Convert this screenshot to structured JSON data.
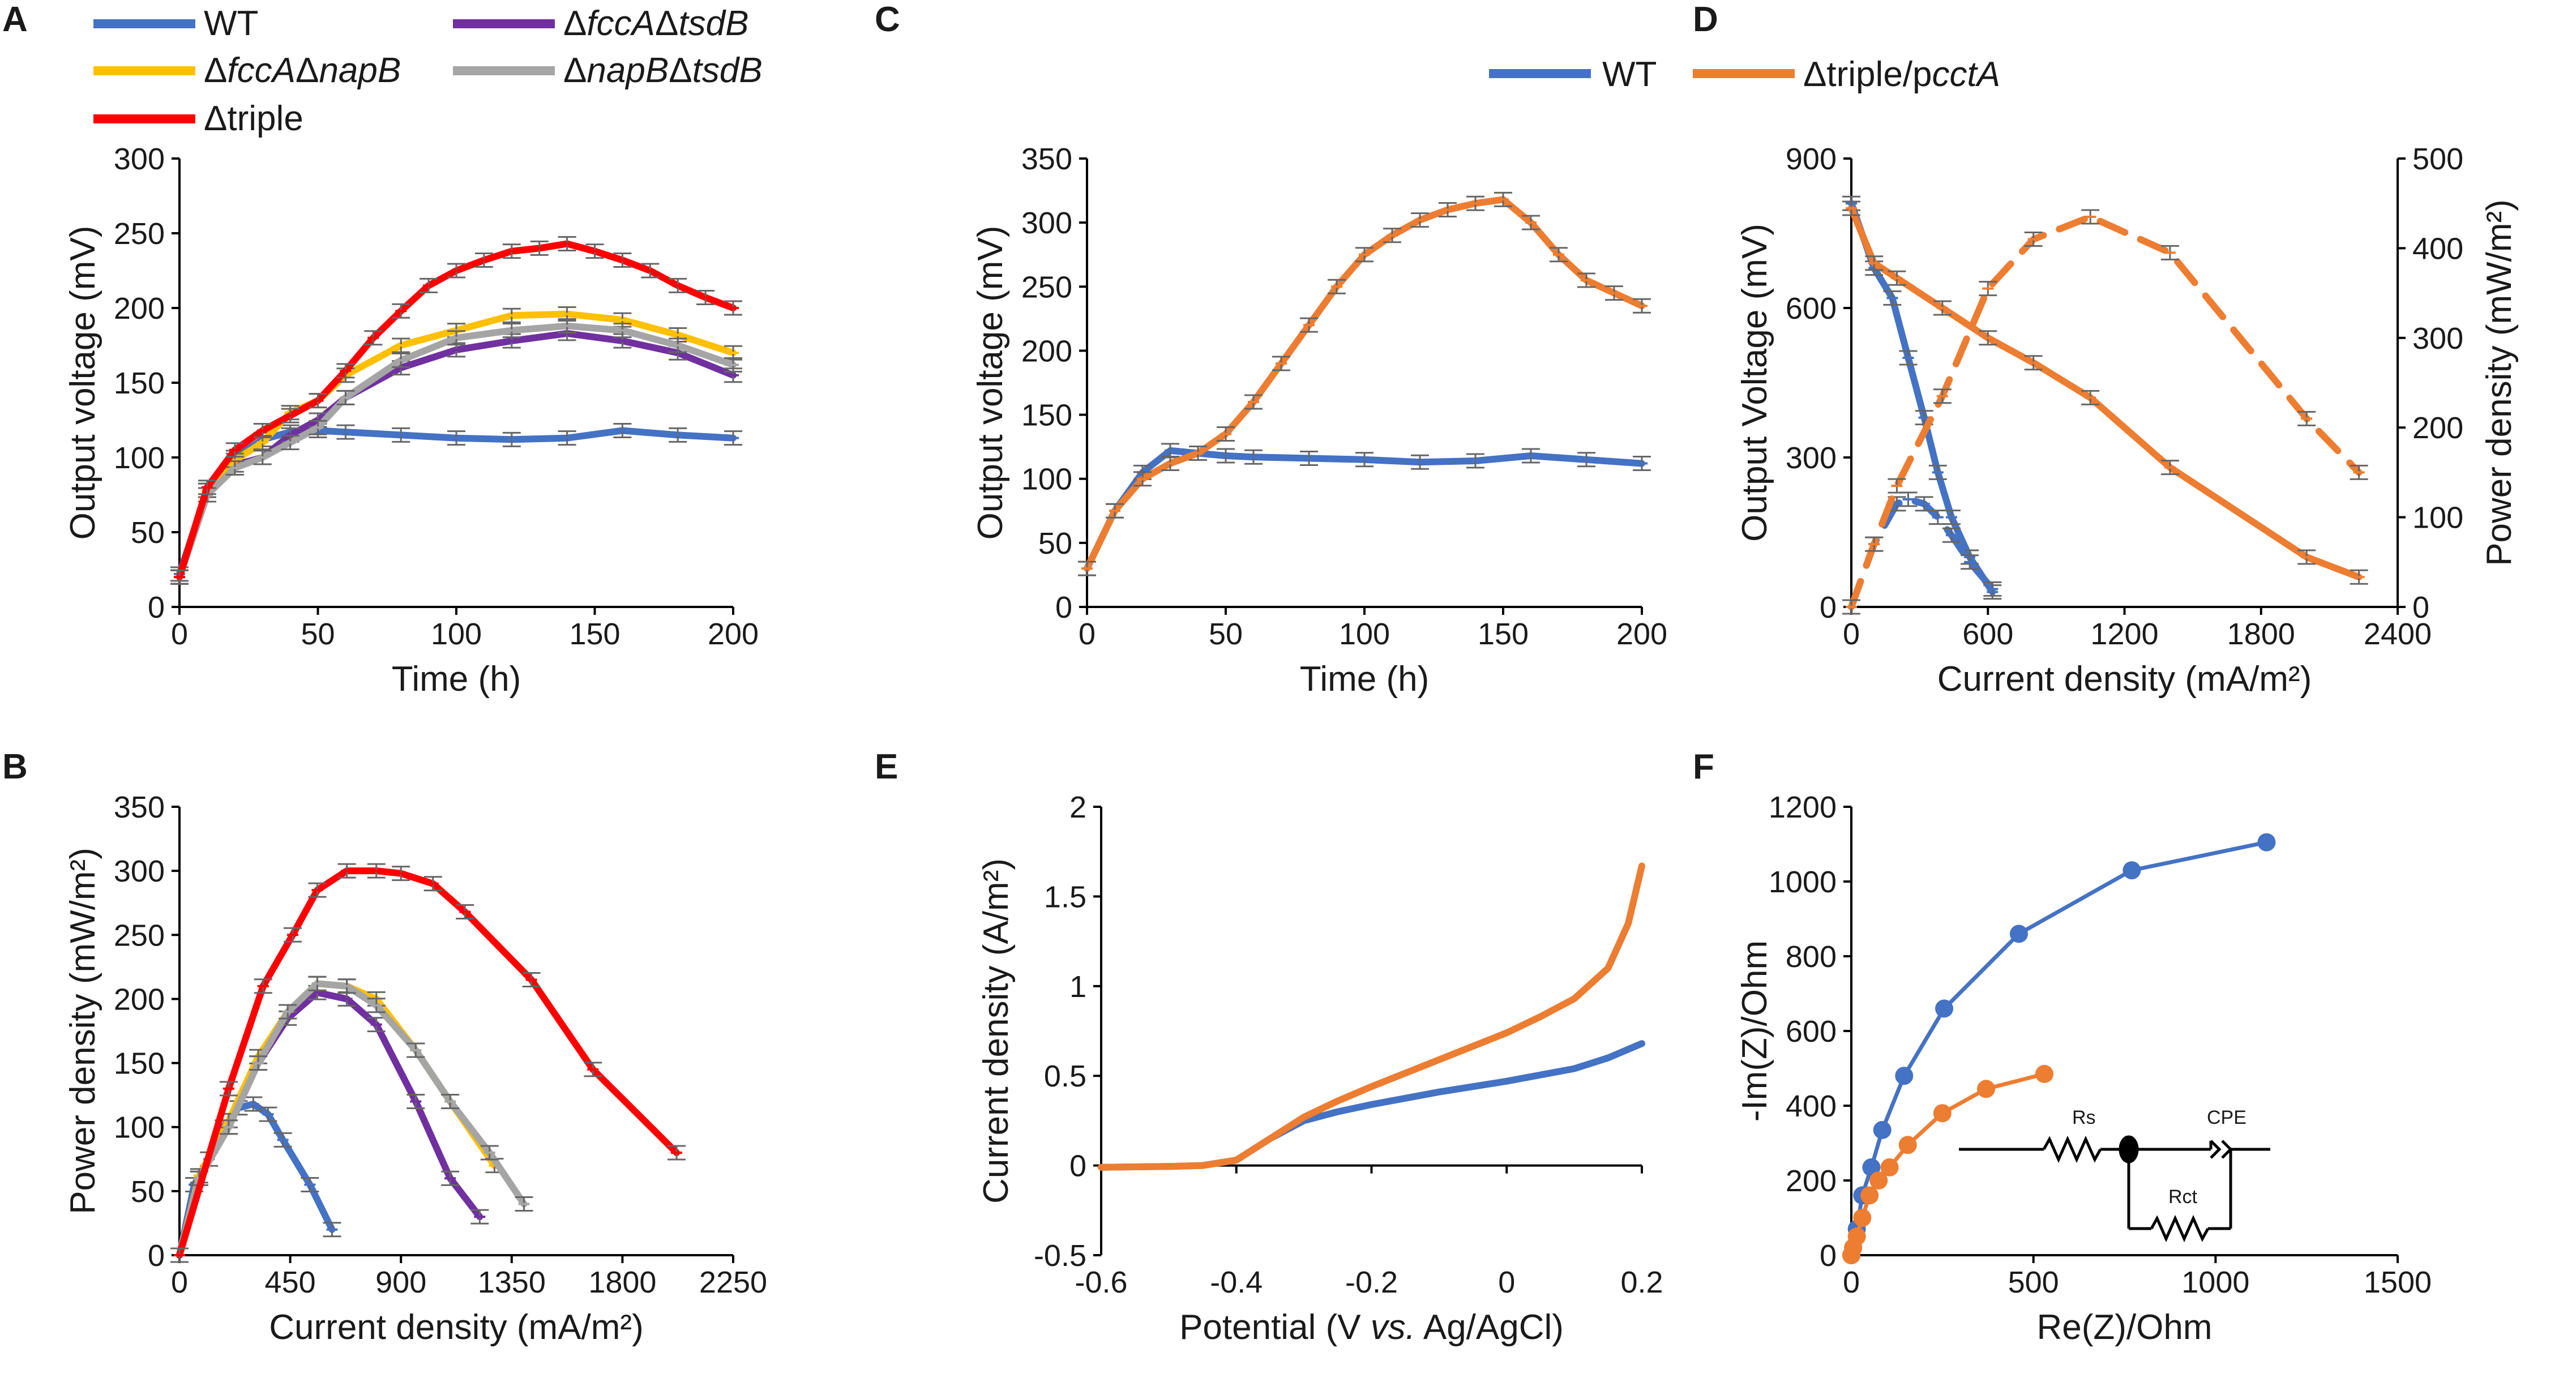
{
  "colors": {
    "wt": "#4472c4",
    "triple": "#ed7d31",
    "red": "#ff0000",
    "purple": "#7030a0",
    "yellow": "#ffc000",
    "gray": "#a5a5a5",
    "axis": "#000000"
  },
  "chart_data": [
    {
      "panel": "A",
      "type": "line",
      "xlabel": "Time (h)",
      "ylabel": "Output voltage (mV)",
      "xlim": [
        0,
        200
      ],
      "ylim": [
        0,
        300
      ],
      "xticks": [
        0,
        50,
        100,
        150,
        200
      ],
      "yticks": [
        0,
        50,
        100,
        150,
        200,
        250,
        300
      ],
      "error_bars": true,
      "legend": [
        {
          "prefix": "",
          "italic": "",
          "mid": "",
          "italic2": "",
          "suffix": "WT",
          "color": "#4472c4"
        },
        {
          "prefix": "Δ",
          "italic": "fccA",
          "mid": "Δ",
          "italic2": "tsdB",
          "suffix": "",
          "color": "#7030a0"
        },
        {
          "prefix": "Δ",
          "italic": "fccA",
          "mid": "Δ",
          "italic2": "napB",
          "suffix": "",
          "color": "#ffc000"
        },
        {
          "prefix": "Δ",
          "italic": "napB",
          "mid": "Δ",
          "italic2": "tsdB",
          "suffix": "",
          "color": "#a5a5a5"
        },
        {
          "prefix": "",
          "italic": "",
          "mid": "",
          "italic2": "",
          "suffix": "Δtriple",
          "color": "#ff0000"
        }
      ],
      "series": [
        {
          "name": "WT",
          "color": "#4472c4",
          "x": [
            0,
            10,
            20,
            30,
            40,
            50,
            60,
            80,
            100,
            120,
            140,
            160,
            180,
            200
          ],
          "y": [
            22,
            78,
            100,
            112,
            117,
            118,
            117,
            115,
            113,
            112,
            113,
            118,
            115,
            113
          ]
        },
        {
          "name": "ΔfccAΔtsdB",
          "color": "#7030a0",
          "x": [
            0,
            10,
            20,
            30,
            40,
            50,
            60,
            80,
            100,
            120,
            140,
            160,
            180,
            200
          ],
          "y": [
            20,
            75,
            95,
            100,
            115,
            125,
            140,
            160,
            172,
            178,
            183,
            178,
            170,
            155
          ]
        },
        {
          "name": "ΔfccAΔnapB",
          "color": "#ffc000",
          "x": [
            0,
            10,
            20,
            30,
            40,
            50,
            60,
            80,
            100,
            120,
            140,
            160,
            180,
            200
          ],
          "y": [
            20,
            78,
            98,
            110,
            130,
            138,
            155,
            175,
            185,
            195,
            196,
            192,
            182,
            170
          ]
        },
        {
          "name": "ΔnapBΔtsdB",
          "color": "#a5a5a5",
          "x": [
            0,
            10,
            20,
            30,
            40,
            50,
            60,
            80,
            100,
            120,
            140,
            160,
            180,
            200
          ],
          "y": [
            20,
            75,
            93,
            100,
            110,
            120,
            140,
            165,
            180,
            185,
            188,
            185,
            175,
            162
          ]
        },
        {
          "name": "Δtriple",
          "color": "#ff0000",
          "x": [
            0,
            10,
            20,
            30,
            40,
            50,
            60,
            70,
            80,
            90,
            100,
            110,
            120,
            130,
            140,
            150,
            160,
            170,
            180,
            190,
            200
          ],
          "y": [
            20,
            80,
            105,
            118,
            128,
            138,
            158,
            180,
            198,
            215,
            225,
            232,
            238,
            240,
            243,
            238,
            232,
            225,
            215,
            207,
            200
          ]
        }
      ]
    },
    {
      "panel": "B",
      "type": "line",
      "xlabel": "Current density (mA/m²)",
      "ylabel": "Power density (mW/m²)",
      "xlim": [
        0,
        2250
      ],
      "ylim": [
        0,
        350
      ],
      "xticks": [
        0,
        450,
        900,
        1350,
        1800,
        2250
      ],
      "yticks": [
        0,
        50,
        100,
        150,
        200,
        250,
        300,
        350
      ],
      "error_bars": true,
      "series": [
        {
          "name": "WT",
          "color": "#4472c4",
          "x": [
            0,
            60,
            120,
            180,
            240,
            300,
            360,
            420,
            530,
            620
          ],
          "y": [
            0,
            55,
            75,
            100,
            115,
            118,
            110,
            90,
            55,
            20
          ]
        },
        {
          "name": "ΔfccAΔtsdB",
          "color": "#7030a0",
          "x": [
            0,
            80,
            200,
            320,
            440,
            560,
            680,
            800,
            960,
            1100,
            1220
          ],
          "y": [
            0,
            60,
            100,
            150,
            185,
            205,
            200,
            180,
            120,
            60,
            30
          ]
        },
        {
          "name": "ΔfccAΔnapB",
          "color": "#ffc000",
          "x": [
            0,
            80,
            200,
            320,
            440,
            560,
            680,
            800,
            960,
            1100,
            1280
          ],
          "y": [
            0,
            62,
            105,
            155,
            190,
            212,
            210,
            200,
            160,
            120,
            70
          ]
        },
        {
          "name": "ΔnapBΔtsdB",
          "color": "#a5a5a5",
          "x": [
            0,
            80,
            200,
            320,
            440,
            560,
            680,
            800,
            960,
            1100,
            1260,
            1400
          ],
          "y": [
            0,
            60,
            100,
            150,
            190,
            212,
            210,
            195,
            160,
            120,
            80,
            40
          ]
        },
        {
          "name": "Δtriple",
          "color": "#ff0000",
          "x": [
            0,
            200,
            340,
            460,
            560,
            680,
            800,
            900,
            1030,
            1160,
            1430,
            1680,
            2020
          ],
          "y": [
            0,
            130,
            210,
            250,
            285,
            300,
            300,
            298,
            290,
            268,
            215,
            145,
            80
          ]
        }
      ]
    },
    {
      "panel": "C",
      "type": "line",
      "xlabel": "Time (h)",
      "ylabel": "Output voltage (mV)",
      "xlim": [
        0,
        200
      ],
      "ylim": [
        0,
        350
      ],
      "xticks": [
        0,
        50,
        100,
        150,
        200
      ],
      "yticks": [
        0,
        50,
        100,
        150,
        200,
        250,
        300,
        350
      ],
      "error_bars": true,
      "legend": [
        {
          "prefix": "",
          "italic": "",
          "mid": "",
          "italic2": "",
          "suffix": "WT",
          "color": "#4472c4"
        },
        {
          "prefix": "Δtriple/p",
          "italic": "cctA",
          "mid": "",
          "italic2": "",
          "suffix": "",
          "color": "#ed7d31"
        }
      ],
      "series": [
        {
          "name": "WT",
          "color": "#4472c4",
          "x": [
            0,
            10,
            20,
            30,
            40,
            50,
            60,
            80,
            100,
            120,
            140,
            160,
            180,
            200
          ],
          "y": [
            30,
            75,
            105,
            122,
            120,
            118,
            117,
            116,
            115,
            113,
            114,
            118,
            115,
            112
          ]
        },
        {
          "name": "Δtriple/pcctA",
          "color": "#ed7d31",
          "x": [
            0,
            10,
            20,
            30,
            40,
            50,
            60,
            70,
            80,
            90,
            100,
            110,
            120,
            130,
            140,
            150,
            160,
            170,
            180,
            190,
            200
          ],
          "y": [
            30,
            75,
            100,
            112,
            120,
            135,
            160,
            190,
            220,
            250,
            275,
            290,
            302,
            310,
            315,
            318,
            300,
            275,
            255,
            245,
            235
          ]
        }
      ]
    },
    {
      "panel": "D",
      "type": "line",
      "xlabel": "Current density (mA/m²)",
      "ylabel": "Output Voltage (mV)",
      "y2label": "Power density (mW/m²)",
      "xlim": [
        0,
        2400
      ],
      "ylim": [
        0,
        900
      ],
      "y2lim": [
        0,
        500
      ],
      "xticks": [
        0,
        600,
        1200,
        1800,
        2400
      ],
      "yticks": [
        0,
        300,
        600,
        900
      ],
      "y2ticks": [
        0,
        100,
        200,
        300,
        400,
        500
      ],
      "error_bars": true,
      "series": [
        {
          "name": "WT voltage",
          "axis": "left",
          "dashed": false,
          "color": "#4472c4",
          "x": [
            0,
            100,
            180,
            250,
            320,
            380,
            440,
            520,
            620
          ],
          "y": [
            810,
            680,
            620,
            500,
            380,
            270,
            180,
            100,
            30
          ]
        },
        {
          "name": "Δtriple/pcctA voltage",
          "axis": "left",
          "dashed": false,
          "color": "#ed7d31",
          "x": [
            0,
            100,
            200,
            400,
            600,
            800,
            1050,
            1400,
            2000,
            2230
          ],
          "y": [
            800,
            690,
            660,
            600,
            540,
            490,
            420,
            280,
            100,
            60
          ]
        },
        {
          "name": "WT power",
          "axis": "right",
          "dashed": true,
          "color": "#4472c4",
          "x": [
            0,
            100,
            200,
            250,
            320,
            380,
            440,
            520,
            620
          ],
          "y": [
            0,
            70,
            115,
            120,
            115,
            100,
            80,
            50,
            20
          ]
        },
        {
          "name": "Δtriple/pcctA power",
          "axis": "right",
          "dashed": true,
          "color": "#ed7d31",
          "x": [
            0,
            100,
            200,
            400,
            600,
            800,
            1050,
            1400,
            2000,
            2230
          ],
          "y": [
            0,
            70,
            135,
            235,
            355,
            410,
            435,
            395,
            210,
            150
          ]
        }
      ]
    },
    {
      "panel": "E",
      "type": "line",
      "xlabel": "Potential (V vs. Ag/AgCl)",
      "ylabel": "Current density (A/m²)",
      "xlim": [
        -0.6,
        0.2
      ],
      "ylim": [
        -0.5,
        2
      ],
      "xticks": [
        -0.6,
        -0.4,
        -0.2,
        0,
        0.2
      ],
      "yticks": [
        -0.5,
        0,
        0.5,
        1,
        1.5,
        2
      ],
      "error_bars": false,
      "series": [
        {
          "name": "WT",
          "color": "#4472c4",
          "x": [
            -0.6,
            -0.5,
            -0.45,
            -0.4,
            -0.35,
            -0.3,
            -0.25,
            -0.2,
            -0.1,
            0,
            0.1,
            0.15,
            0.2
          ],
          "y": [
            -0.01,
            -0.005,
            0.0,
            0.03,
            0.15,
            0.25,
            0.3,
            0.34,
            0.41,
            0.47,
            0.54,
            0.6,
            0.68
          ]
        },
        {
          "name": "Δtriple/pcctA",
          "color": "#ed7d31",
          "x": [
            -0.6,
            -0.5,
            -0.45,
            -0.4,
            -0.35,
            -0.3,
            -0.25,
            -0.2,
            -0.1,
            0,
            0.05,
            0.1,
            0.15,
            0.18,
            0.2
          ],
          "y": [
            -0.01,
            -0.005,
            0.0,
            0.03,
            0.15,
            0.27,
            0.36,
            0.44,
            0.59,
            0.74,
            0.83,
            0.93,
            1.1,
            1.35,
            1.67
          ]
        }
      ]
    },
    {
      "panel": "F",
      "type": "line",
      "xlabel": "Re(Z)/Ohm",
      "ylabel": "-Im(Z)/Ohm",
      "xlim": [
        0,
        1500
      ],
      "ylim": [
        0,
        1200
      ],
      "xticks": [
        0,
        500,
        1000,
        1500
      ],
      "yticks": [
        0,
        200,
        400,
        600,
        800,
        1000,
        1200
      ],
      "error_bars": false,
      "circuit_labels": [
        "Rs",
        "CPE",
        "Rct"
      ],
      "series": [
        {
          "name": "WT",
          "color": "#4472c4",
          "markers": true,
          "x": [
            0,
            5,
            15,
            30,
            55,
            85,
            145,
            255,
            460,
            770,
            1140
          ],
          "y": [
            0,
            20,
            70,
            160,
            235,
            335,
            480,
            660,
            860,
            1030,
            1105
          ]
        },
        {
          "name": "Δtriple/pcctA",
          "color": "#ed7d31",
          "markers": true,
          "x": [
            0,
            5,
            15,
            30,
            50,
            75,
            105,
            155,
            250,
            370,
            530
          ],
          "y": [
            0,
            20,
            50,
            100,
            160,
            200,
            235,
            295,
            380,
            445,
            485
          ]
        }
      ]
    }
  ]
}
